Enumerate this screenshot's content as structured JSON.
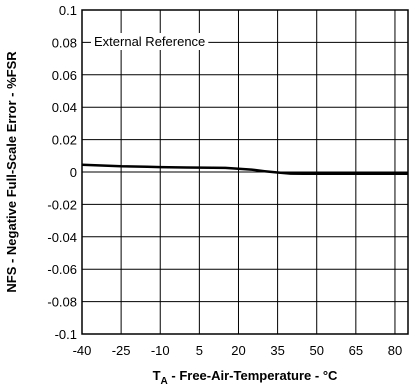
{
  "chart_data": {
    "type": "line",
    "title": "",
    "xlabel_prefix": "T",
    "xlabel_subscript": "A",
    "xlabel_suffix": " - Free-Air-Temperature - °C",
    "ylabel": "NFS - Negative Full-Scale Error - %FSR",
    "annotation": "External  Reference",
    "xlim": [
      -40,
      85
    ],
    "ylim": [
      -0.1,
      0.1
    ],
    "xticks": [
      -40,
      -25,
      -10,
      5,
      20,
      35,
      50,
      65,
      80
    ],
    "xtick_labels": [
      "-40",
      "-25",
      "-10",
      "5",
      "20",
      "35",
      "50",
      "65",
      "80"
    ],
    "yticks": [
      0.1,
      0.08,
      0.06,
      0.04,
      0.02,
      0,
      -0.02,
      -0.04,
      -0.06,
      -0.08,
      -0.1
    ],
    "ytick_labels": [
      "0.1",
      "0.08",
      "0.06",
      "0.04",
      "0.02",
      "0",
      "-0.02",
      "-0.04",
      "-0.06",
      "-0.08",
      "-0.1"
    ],
    "grid": true,
    "series": [
      {
        "x": [
          -40,
          -30,
          -25,
          -15,
          -10,
          0,
          5,
          15,
          20,
          25,
          30,
          35,
          40,
          45,
          50,
          60,
          70,
          80,
          85
        ],
        "y": [
          0.0045,
          0.0038,
          0.0035,
          0.0033,
          0.003,
          0.0028,
          0.0027,
          0.0025,
          0.002,
          0.0015,
          0.0005,
          -0.0003,
          -0.001,
          -0.0011,
          -0.0011,
          -0.0011,
          -0.0011,
          -0.0011,
          -0.0011
        ]
      }
    ]
  }
}
